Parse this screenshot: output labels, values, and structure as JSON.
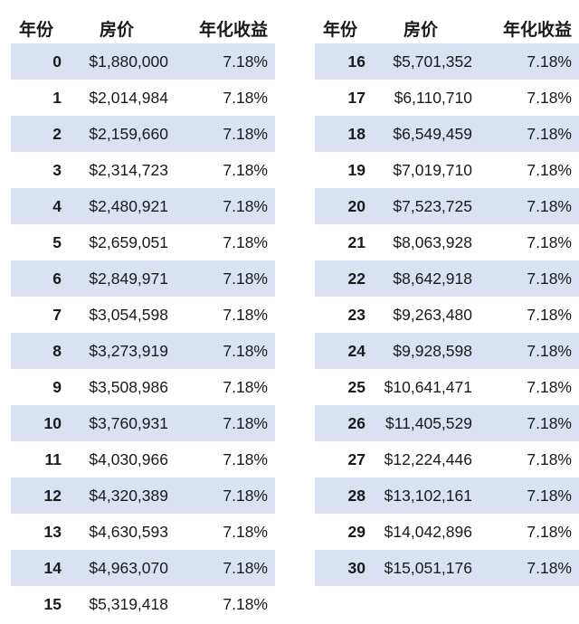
{
  "headers": {
    "year": "年份",
    "price": "房价",
    "rate": "年化收益"
  },
  "left_rows": [
    {
      "year": "0",
      "price": "$1,880,000",
      "rate": "7.18%"
    },
    {
      "year": "1",
      "price": "$2,014,984",
      "rate": "7.18%"
    },
    {
      "year": "2",
      "price": "$2,159,660",
      "rate": "7.18%"
    },
    {
      "year": "3",
      "price": "$2,314,723",
      "rate": "7.18%"
    },
    {
      "year": "4",
      "price": "$2,480,921",
      "rate": "7.18%"
    },
    {
      "year": "5",
      "price": "$2,659,051",
      "rate": "7.18%"
    },
    {
      "year": "6",
      "price": "$2,849,971",
      "rate": "7.18%"
    },
    {
      "year": "7",
      "price": "$3,054,598",
      "rate": "7.18%"
    },
    {
      "year": "8",
      "price": "$3,273,919",
      "rate": "7.18%"
    },
    {
      "year": "9",
      "price": "$3,508,986",
      "rate": "7.18%"
    },
    {
      "year": "10",
      "price": "$3,760,931",
      "rate": "7.18%"
    },
    {
      "year": "11",
      "price": "$4,030,966",
      "rate": "7.18%"
    },
    {
      "year": "12",
      "price": "$4,320,389",
      "rate": "7.18%"
    },
    {
      "year": "13",
      "price": "$4,630,593",
      "rate": "7.18%"
    },
    {
      "year": "14",
      "price": "$4,963,070",
      "rate": "7.18%"
    },
    {
      "year": "15",
      "price": "$5,319,418",
      "rate": "7.18%"
    }
  ],
  "right_rows": [
    {
      "year": "16",
      "price": "$5,701,352",
      "rate": "7.18%"
    },
    {
      "year": "17",
      "price": "$6,110,710",
      "rate": "7.18%"
    },
    {
      "year": "18",
      "price": "$6,549,459",
      "rate": "7.18%"
    },
    {
      "year": "19",
      "price": "$7,019,710",
      "rate": "7.18%"
    },
    {
      "year": "20",
      "price": "$7,523,725",
      "rate": "7.18%"
    },
    {
      "year": "21",
      "price": "$8,063,928",
      "rate": "7.18%"
    },
    {
      "year": "22",
      "price": "$8,642,918",
      "rate": "7.18%"
    },
    {
      "year": "23",
      "price": "$9,263,480",
      "rate": "7.18%"
    },
    {
      "year": "24",
      "price": "$9,928,598",
      "rate": "7.18%"
    },
    {
      "year": "25",
      "price": "$10,641,471",
      "rate": "7.18%"
    },
    {
      "year": "26",
      "price": "$11,405,529",
      "rate": "7.18%"
    },
    {
      "year": "27",
      "price": "$12,224,446",
      "rate": "7.18%"
    },
    {
      "year": "28",
      "price": "$13,102,161",
      "rate": "7.18%"
    },
    {
      "year": "29",
      "price": "$14,042,896",
      "rate": "7.18%"
    },
    {
      "year": "30",
      "price": "$15,051,176",
      "rate": "7.18%"
    }
  ],
  "colors": {
    "row_shade": "#d9e1f2",
    "text": "#1a1a1a",
    "background": "#ffffff"
  }
}
